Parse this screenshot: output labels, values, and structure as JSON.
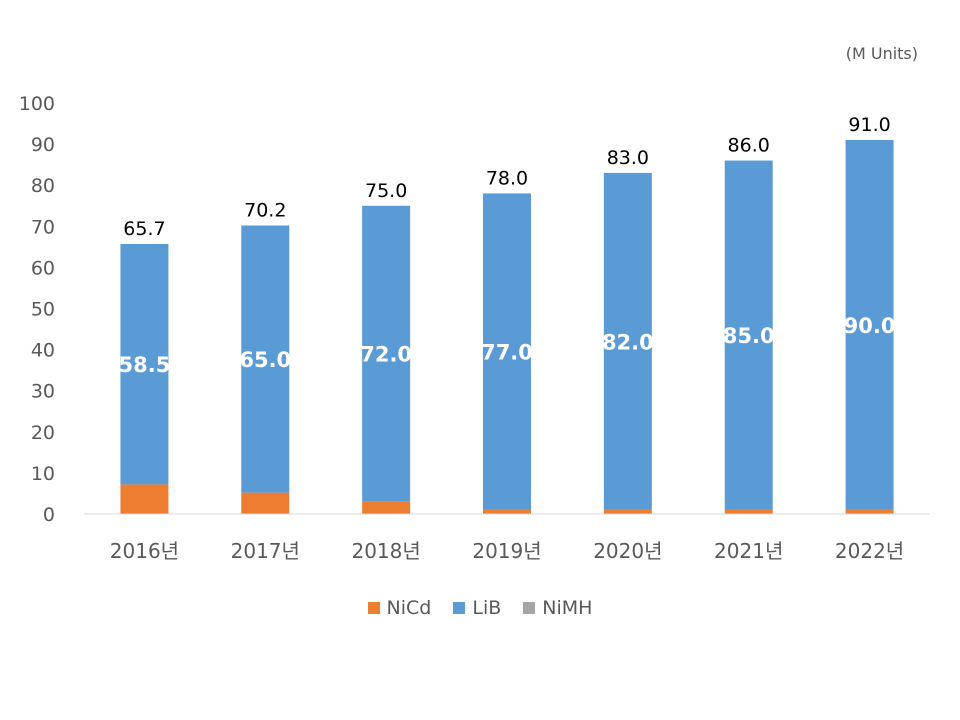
{
  "unit_label": "(M Units)",
  "chart_data": {
    "type": "bar",
    "stacked": true,
    "categories": [
      "2016년",
      "2017년",
      "2018년",
      "2019년",
      "2020년",
      "2021년",
      "2022년"
    ],
    "series": [
      {
        "name": "NiCd",
        "color": "#ED7D31",
        "values": [
          7.2,
          5.2,
          3.0,
          1.0,
          1.0,
          1.0,
          1.0
        ]
      },
      {
        "name": "LiB",
        "color": "#5B9BD5",
        "values": [
          58.5,
          65.0,
          72.0,
          77.0,
          82.0,
          85.0,
          90.0
        ]
      },
      {
        "name": "NiMH",
        "color": "#A5A5A5",
        "values": [
          0,
          0,
          0,
          0,
          0,
          0,
          0
        ]
      }
    ],
    "inner_labels": [
      "58.5",
      "65.0",
      "72.0",
      "77.0",
      "82.0",
      "85.0",
      "90.0"
    ],
    "totals": [
      "65.7",
      "70.2",
      "75.0",
      "78.0",
      "83.0",
      "86.0",
      "91.0"
    ],
    "ylim": [
      0,
      100
    ],
    "yticks": [
      0,
      10,
      20,
      30,
      40,
      50,
      60,
      70,
      80,
      90,
      100
    ],
    "grid": false,
    "legend_position": "bottom"
  }
}
